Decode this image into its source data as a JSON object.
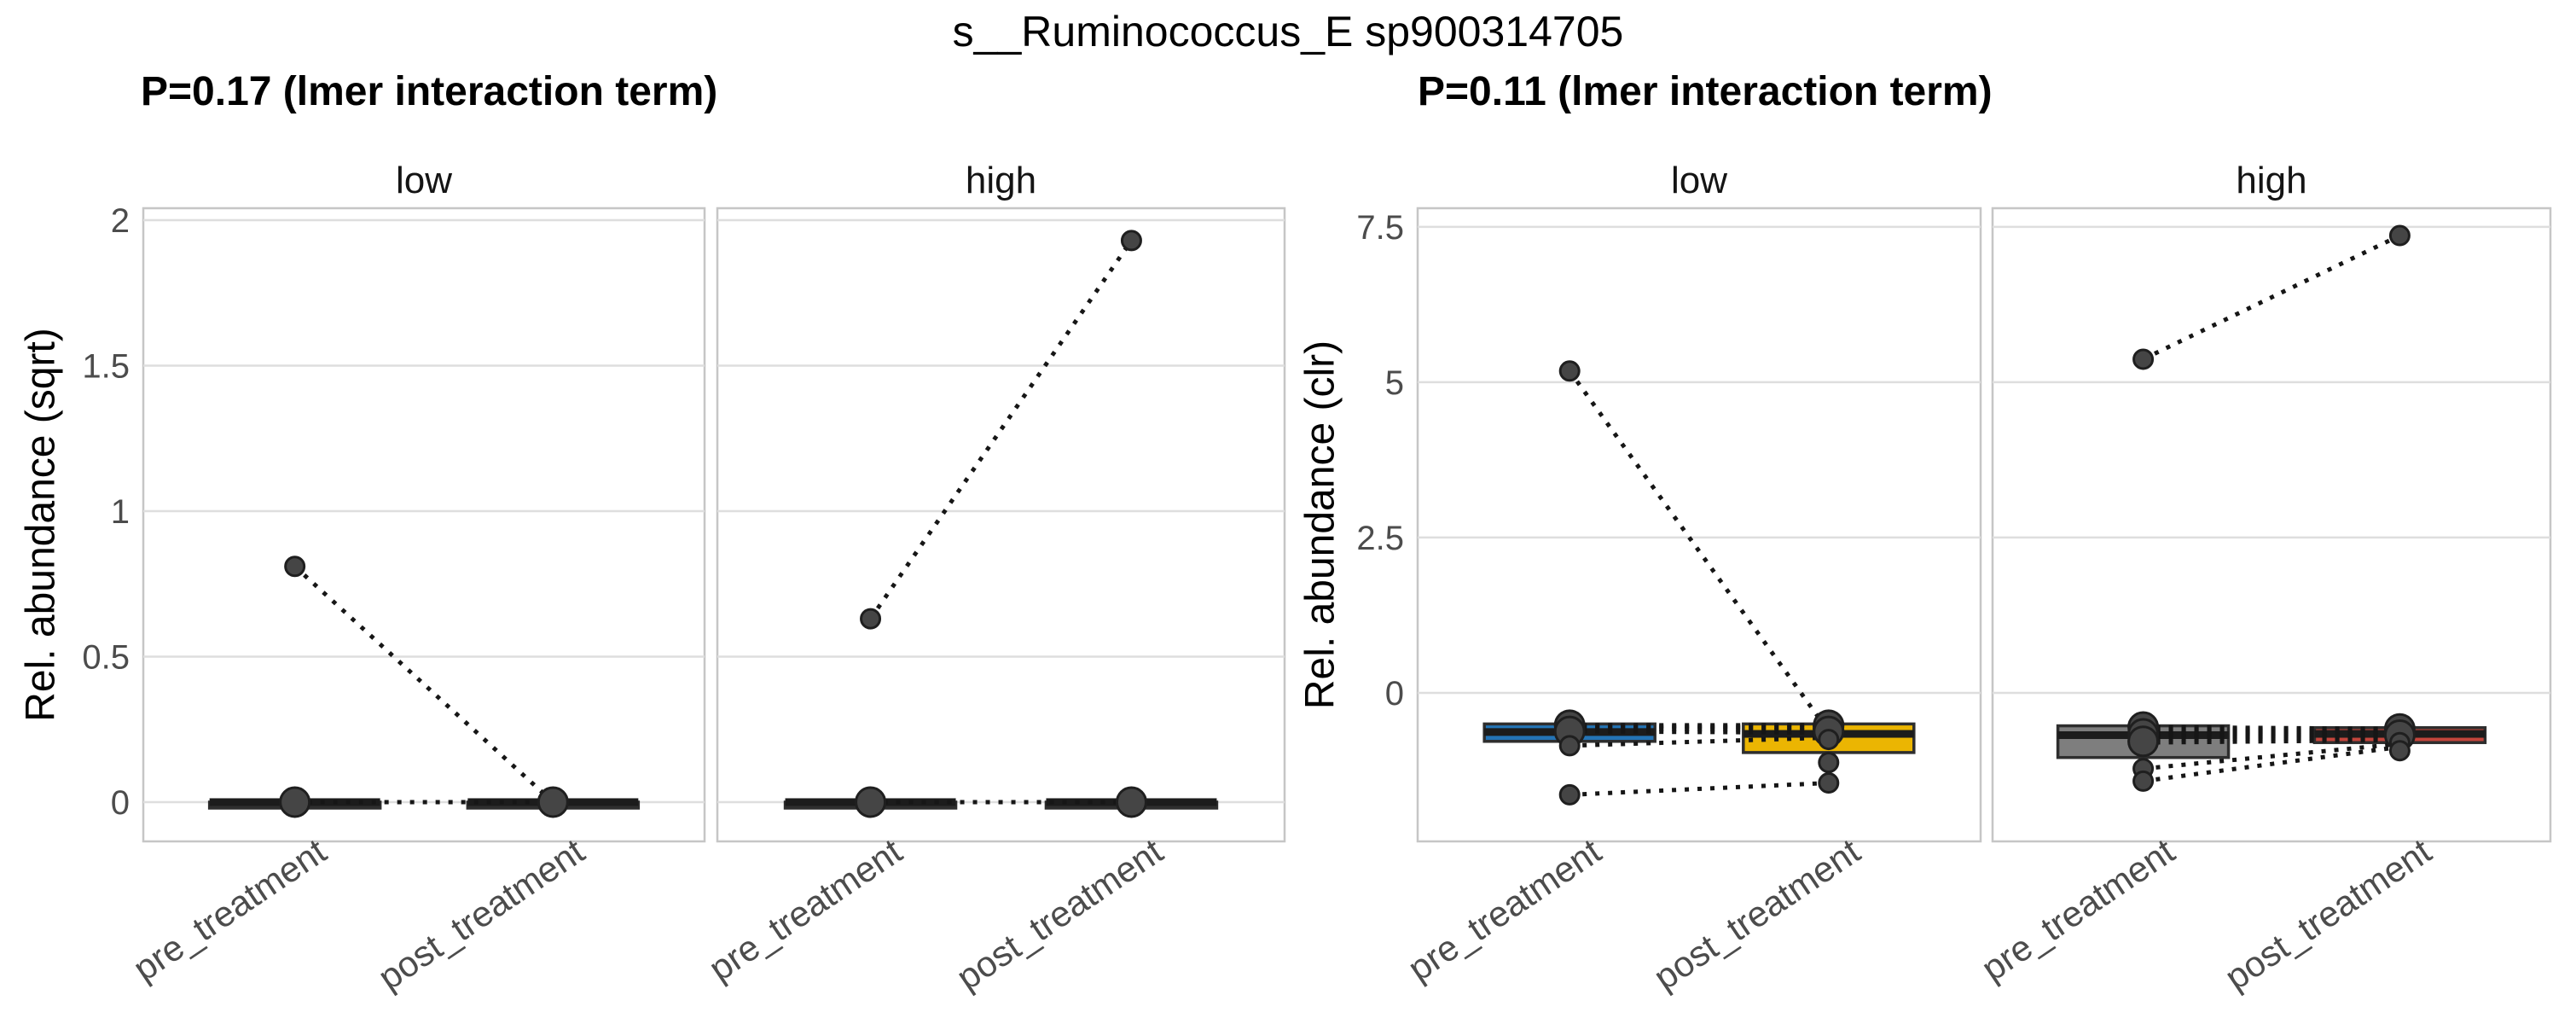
{
  "page": {
    "title": "s__Ruminococcus_E sp900314705"
  },
  "style": {
    "grid_color": "#DEDEDE",
    "panel_border": "#C6C6C6",
    "tick_label_color": "#4C4C4C",
    "facet_label_color": "#141414",
    "box_stroke": "#2E2E2E",
    "median_color": "#1C1C1C",
    "point_fill": "#454545",
    "point_stroke": "#1F1F1F",
    "pair_line_color": "#161616",
    "pre_low_fill": "#2474B6",
    "post_low_fill": "#EBB502",
    "pre_high_fill": "#7E7E7E",
    "post_high_fill": "#C4453C"
  },
  "chart_data": [
    {
      "type": "paired-boxplot-with-lines",
      "subtitle": "P=0.17 (lmer interaction term)",
      "ylabel": "Rel. abundance (sqrt)",
      "grid": "major-y",
      "legend": "none",
      "categories": [
        "pre_treatment",
        "post_treatment"
      ],
      "ylim": [
        -0.135,
        2.041
      ],
      "yticks": [
        {
          "v": 0,
          "label": "0"
        },
        {
          "v": 0.5,
          "label": "0.5"
        },
        {
          "v": 1,
          "label": "1"
        },
        {
          "v": 1.5,
          "label": "1.5"
        },
        {
          "v": 2,
          "label": "2"
        }
      ],
      "facets": [
        {
          "label": "low",
          "groups": [
            {
              "category": "pre_treatment",
              "box": {
                "fill": "#2F2F2F",
                "q1": 0,
                "q3": 0,
                "median": 0,
                "whisker_low": 0,
                "whisker_high": 0
              },
              "points": [
                {
                  "v": 0.81
                },
                {
                  "v": 0,
                  "big": true
                }
              ]
            },
            {
              "category": "post_treatment",
              "box": {
                "fill": "#2F2F2F",
                "q1": 0,
                "q3": 0,
                "median": 0,
                "whisker_low": 0,
                "whisker_high": 0
              },
              "points": [
                {
                  "v": 0,
                  "big": true
                }
              ]
            }
          ],
          "pairs": [
            [
              0.81,
              0
            ],
            [
              0,
              0
            ]
          ]
        },
        {
          "label": "high",
          "groups": [
            {
              "category": "pre_treatment",
              "box": {
                "fill": "#2F2F2F",
                "q1": 0,
                "q3": 0,
                "median": 0,
                "whisker_low": 0,
                "whisker_high": 0
              },
              "points": [
                {
                  "v": 0.63
                },
                {
                  "v": 0,
                  "big": true
                }
              ]
            },
            {
              "category": "post_treatment",
              "box": {
                "fill": "#2F2F2F",
                "q1": 0,
                "q3": 0,
                "median": 0,
                "whisker_low": 0,
                "whisker_high": 0
              },
              "points": [
                {
                  "v": 1.93
                },
                {
                  "v": 0,
                  "big": true
                }
              ]
            }
          ],
          "pairs": [
            [
              0.63,
              1.93
            ],
            [
              0,
              0
            ]
          ]
        }
      ]
    },
    {
      "type": "paired-boxplot-with-lines",
      "subtitle": "P=0.11 (lmer interaction term)",
      "ylabel": "Rel. abundance (clr)",
      "grid": "major-y",
      "legend": "none",
      "categories": [
        "pre_treatment",
        "post_treatment"
      ],
      "ylim": [
        -2.39,
        7.8
      ],
      "yticks": [
        {
          "v": 0,
          "label": "0"
        },
        {
          "v": 2.5,
          "label": "2.5"
        },
        {
          "v": 5,
          "label": "5"
        },
        {
          "v": 7.5,
          "label": "7.5"
        }
      ],
      "facets": [
        {
          "label": "low",
          "groups": [
            {
              "category": "pre_treatment",
              "box": {
                "fill": "#2474B6",
                "q1": -0.78,
                "q3": -0.5,
                "median": -0.63,
                "whisker_low": -0.8,
                "whisker_high": -0.5
              },
              "points": [
                {
                  "v": 5.18
                },
                {
                  "v": -0.52,
                  "big": true
                },
                {
                  "v": -0.62,
                  "big": true
                },
                {
                  "v": -0.85
                },
                {
                  "v": -1.64
                }
              ]
            },
            {
              "category": "post_treatment",
              "box": {
                "fill": "#EBB502",
                "q1": -0.96,
                "q3": -0.5,
                "median": -0.66,
                "whisker_low": -1.1,
                "whisker_high": -0.5
              },
              "points": [
                {
                  "v": -0.52,
                  "big": true
                },
                {
                  "v": -0.62,
                  "big": true
                },
                {
                  "v": -0.75
                },
                {
                  "v": -1.12
                },
                {
                  "v": -1.45
                }
              ]
            }
          ],
          "pairs": [
            [
              5.18,
              -0.62
            ],
            [
              -0.52,
              -0.52
            ],
            [
              -0.54,
              -0.56
            ],
            [
              -0.57,
              -0.6
            ],
            [
              -0.62,
              -0.64
            ],
            [
              -0.85,
              -0.72
            ],
            [
              -1.64,
              -1.45
            ]
          ]
        },
        {
          "label": "high",
          "groups": [
            {
              "category": "pre_treatment",
              "box": {
                "fill": "#7E7E7E",
                "q1": -1.04,
                "q3": -0.53,
                "median": -0.68,
                "whisker_low": -1.24,
                "whisker_high": -0.53
              },
              "points": [
                {
                  "v": 5.37
                },
                {
                  "v": -0.55,
                  "big": true
                },
                {
                  "v": -0.66,
                  "big": true
                },
                {
                  "v": -0.78,
                  "big": true
                },
                {
                  "v": -1.22
                },
                {
                  "v": -1.42
                }
              ]
            },
            {
              "category": "post_treatment",
              "box": {
                "fill": "#C4453C",
                "q1": -0.8,
                "q3": -0.56,
                "median": -0.66,
                "whisker_low": -0.92,
                "whisker_high": -0.56
              },
              "points": [
                {
                  "v": 7.36
                },
                {
                  "v": -0.58,
                  "big": true
                },
                {
                  "v": -0.68,
                  "big": true
                },
                {
                  "v": -0.8
                },
                {
                  "v": -0.93
                }
              ]
            }
          ],
          "pairs": [
            [
              5.37,
              7.36
            ],
            [
              -0.55,
              -0.58
            ],
            [
              -0.58,
              -0.6
            ],
            [
              -0.61,
              -0.63
            ],
            [
              -0.64,
              -0.66
            ],
            [
              -0.67,
              -0.68
            ],
            [
              -0.71,
              -0.7
            ],
            [
              -0.75,
              -0.73
            ],
            [
              -0.8,
              -0.76
            ],
            [
              -1.22,
              -0.82
            ],
            [
              -1.42,
              -0.87
            ]
          ]
        }
      ]
    }
  ]
}
